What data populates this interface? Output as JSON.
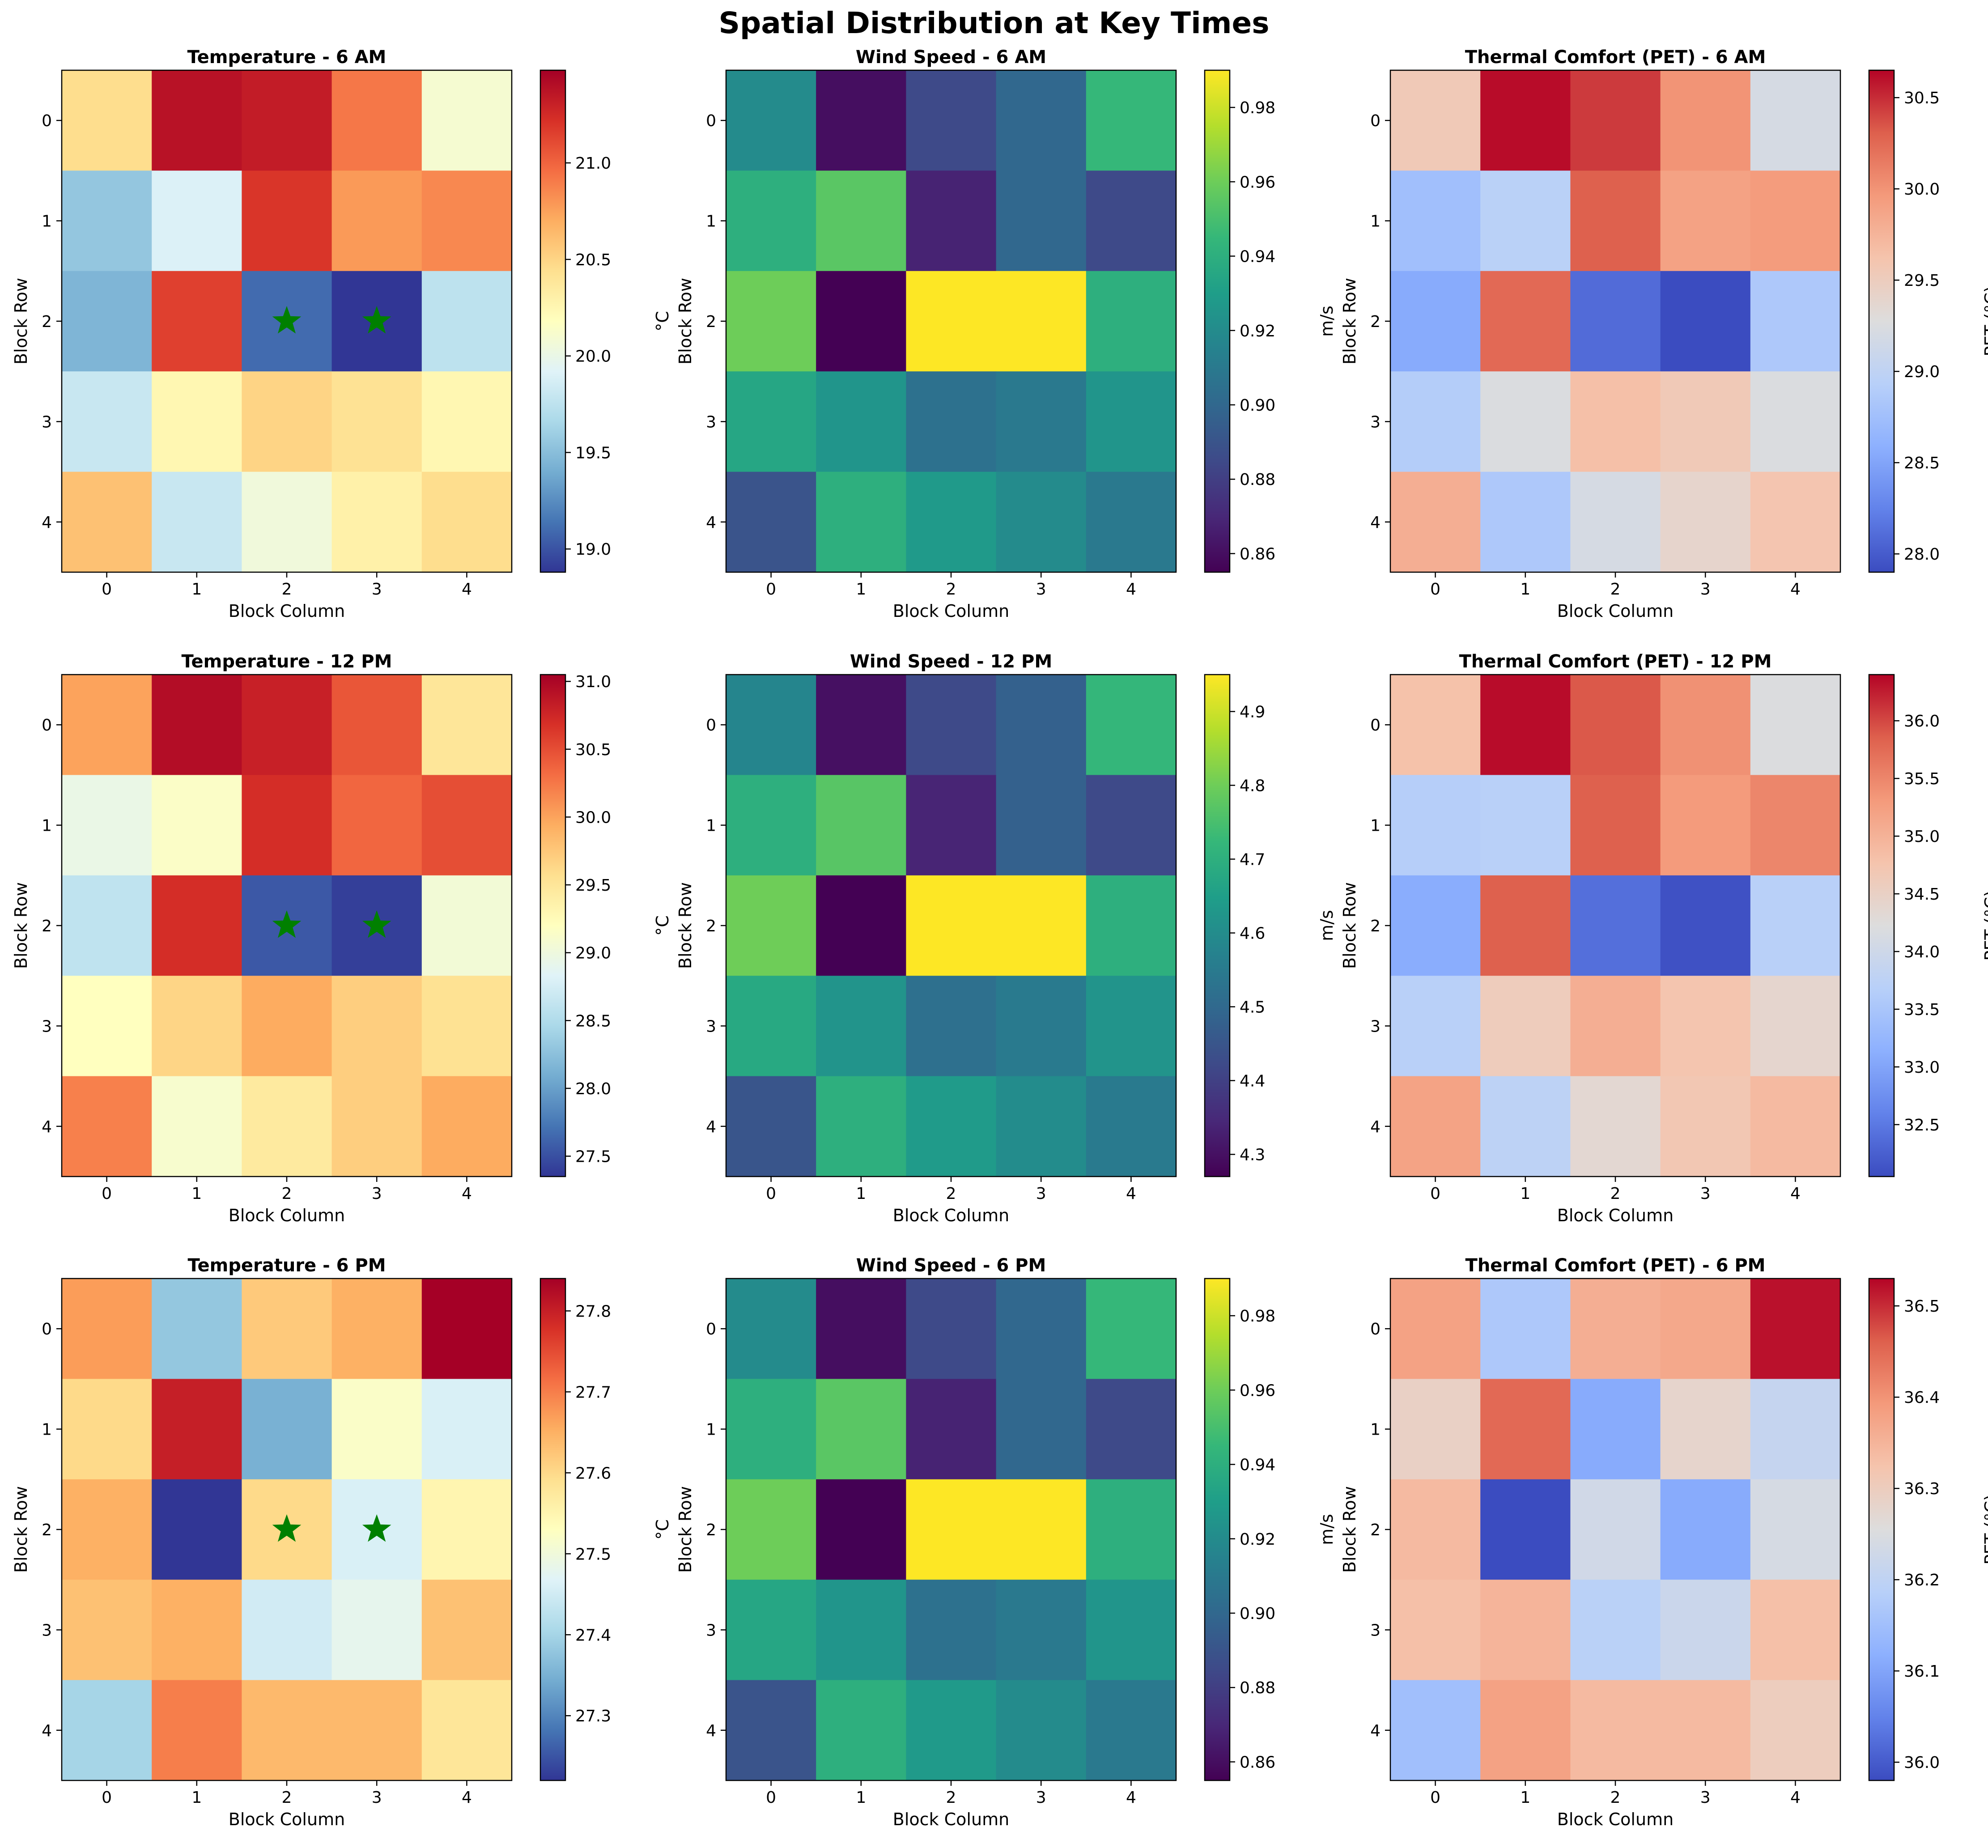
{
  "figure": {
    "suptitle": "Spatial Distribution at Key Times"
  },
  "chart_data": [
    {
      "type": "heatmap",
      "title": "Temperature - 6 AM",
      "xlabel": "Block Column",
      "ylabel": "Block Row",
      "cbar_label": "°C",
      "colormap": "RdYlBu_r",
      "vmin": 18.88,
      "vmax": 21.48,
      "cbar_ticks": [
        19.0,
        19.5,
        20.0,
        20.5,
        21.0
      ],
      "cbar_tick_labels": [
        "19.0",
        "19.5",
        "20.0",
        "20.5",
        "21.0"
      ],
      "x_ticks": [
        "0",
        "1",
        "2",
        "3",
        "4"
      ],
      "y_ticks": [
        "0",
        "1",
        "2",
        "3",
        "4"
      ],
      "values": [
        [
          20.45,
          21.38,
          21.33,
          20.92,
          20.1
        ],
        [
          19.55,
          19.9,
          21.2,
          20.78,
          20.85
        ],
        [
          19.45,
          21.15,
          19.1,
          18.88,
          19.75
        ],
        [
          19.8,
          20.25,
          20.5,
          20.42,
          20.25
        ],
        [
          20.6,
          19.8,
          20.05,
          20.3,
          20.45
        ]
      ],
      "markers": [
        {
          "row": 2,
          "col": 2
        },
        {
          "row": 2,
          "col": 3
        }
      ],
      "marker_color": "#008000"
    },
    {
      "type": "heatmap",
      "title": "Wind Speed - 6 AM",
      "xlabel": "Block Column",
      "ylabel": "Block Row",
      "cbar_label": "m/s",
      "colormap": "viridis",
      "vmin": 0.855,
      "vmax": 0.99,
      "cbar_ticks": [
        0.86,
        0.88,
        0.9,
        0.92,
        0.94,
        0.96,
        0.98
      ],
      "cbar_tick_labels": [
        "0.86",
        "0.88",
        "0.90",
        "0.92",
        "0.94",
        "0.96",
        "0.98"
      ],
      "x_ticks": [
        "0",
        "1",
        "2",
        "3",
        "4"
      ],
      "y_ticks": [
        "0",
        "1",
        "2",
        "3",
        "4"
      ],
      "values": [
        [
          0.92,
          0.86,
          0.885,
          0.9,
          0.945
        ],
        [
          0.94,
          0.955,
          0.868,
          0.9,
          0.885
        ],
        [
          0.96,
          0.855,
          0.99,
          0.99,
          0.94
        ],
        [
          0.935,
          0.925,
          0.905,
          0.91,
          0.925
        ],
        [
          0.89,
          0.94,
          0.928,
          0.92,
          0.91
        ]
      ]
    },
    {
      "type": "heatmap",
      "title": "Thermal Comfort (PET) - 6 AM",
      "xlabel": "Block Column",
      "ylabel": "Block Row",
      "cbar_label": "PET (°C)",
      "colormap": "coolwarm",
      "vmin": 27.9,
      "vmax": 30.65,
      "cbar_ticks": [
        28.0,
        28.5,
        29.0,
        29.5,
        30.0,
        30.5
      ],
      "cbar_tick_labels": [
        "28.0",
        "28.5",
        "29.0",
        "29.5",
        "30.0",
        "30.5"
      ],
      "x_ticks": [
        "0",
        "1",
        "2",
        "3",
        "4"
      ],
      "y_ticks": [
        "0",
        "1",
        "2",
        "3",
        "4"
      ],
      "values": [
        [
          29.55,
          30.62,
          30.45,
          30.0,
          29.2
        ],
        [
          28.75,
          28.95,
          30.3,
          29.9,
          29.95
        ],
        [
          28.55,
          30.25,
          28.1,
          27.9,
          28.85
        ],
        [
          28.9,
          29.25,
          29.65,
          29.55,
          29.25
        ],
        [
          29.8,
          28.85,
          29.2,
          29.4,
          29.6
        ]
      ]
    },
    {
      "type": "heatmap",
      "title": "Temperature - 12 PM",
      "xlabel": "Block Column",
      "ylabel": "Block Row",
      "cbar_label": "°C",
      "colormap": "RdYlBu_r",
      "vmin": 27.35,
      "vmax": 31.05,
      "cbar_ticks": [
        27.5,
        28.0,
        28.5,
        29.0,
        29.5,
        30.0,
        30.5,
        31.0
      ],
      "cbar_tick_labels": [
        "27.5",
        "28.0",
        "28.5",
        "29.0",
        "29.5",
        "30.0",
        "30.5",
        "31.0"
      ],
      "x_ticks": [
        "0",
        "1",
        "2",
        "3",
        "4"
      ],
      "y_ticks": [
        "0",
        "1",
        "2",
        "3",
        "4"
      ],
      "values": [
        [
          30.0,
          30.95,
          30.8,
          30.45,
          29.5
        ],
        [
          28.95,
          29.15,
          30.7,
          30.35,
          30.5
        ],
        [
          28.6,
          30.7,
          27.55,
          27.4,
          29.05
        ],
        [
          29.2,
          29.65,
          29.95,
          29.7,
          29.55
        ],
        [
          30.2,
          29.1,
          29.45,
          29.7,
          29.95
        ]
      ],
      "markers": [
        {
          "row": 2,
          "col": 2
        },
        {
          "row": 2,
          "col": 3
        }
      ],
      "marker_color": "#008000"
    },
    {
      "type": "heatmap",
      "title": "Wind Speed - 12 PM",
      "xlabel": "Block Column",
      "ylabel": "Block Row",
      "cbar_label": "m/s",
      "colormap": "viridis",
      "vmin": 4.27,
      "vmax": 4.95,
      "cbar_ticks": [
        4.3,
        4.4,
        4.5,
        4.6,
        4.7,
        4.8,
        4.9
      ],
      "cbar_tick_labels": [
        "4.3",
        "4.4",
        "4.5",
        "4.6",
        "4.7",
        "4.8",
        "4.9"
      ],
      "x_ticks": [
        "0",
        "1",
        "2",
        "3",
        "4"
      ],
      "y_ticks": [
        "0",
        "1",
        "2",
        "3",
        "4"
      ],
      "values": [
        [
          4.58,
          4.3,
          4.42,
          4.48,
          4.72
        ],
        [
          4.7,
          4.77,
          4.34,
          4.48,
          4.42
        ],
        [
          4.8,
          4.27,
          4.95,
          4.95,
          4.7
        ],
        [
          4.68,
          4.62,
          4.52,
          4.55,
          4.62
        ],
        [
          4.45,
          4.7,
          4.64,
          4.6,
          4.55
        ]
      ]
    },
    {
      "type": "heatmap",
      "title": "Thermal Comfort (PET) - 12 PM",
      "xlabel": "Block Column",
      "ylabel": "Block Row",
      "cbar_label": "PET (°C)",
      "colormap": "coolwarm",
      "vmin": 32.05,
      "vmax": 36.4,
      "cbar_ticks": [
        32.5,
        33.0,
        33.5,
        34.0,
        34.5,
        35.0,
        35.5,
        36.0
      ],
      "cbar_tick_labels": [
        "32.5",
        "33.0",
        "33.5",
        "34.0",
        "34.5",
        "35.0",
        "35.5",
        "36.0"
      ],
      "x_ticks": [
        "0",
        "1",
        "2",
        "3",
        "4"
      ],
      "y_ticks": [
        "0",
        "1",
        "2",
        "3",
        "4"
      ],
      "values": [
        [
          34.8,
          36.35,
          35.9,
          35.4,
          34.2
        ],
        [
          33.65,
          33.7,
          35.85,
          35.3,
          35.5
        ],
        [
          33.1,
          35.85,
          32.4,
          32.1,
          33.7
        ],
        [
          33.7,
          34.6,
          35.05,
          34.75,
          34.4
        ],
        [
          35.2,
          33.75,
          34.35,
          34.7,
          34.9
        ]
      ]
    },
    {
      "type": "heatmap",
      "title": "Temperature - 6 PM",
      "xlabel": "Block Column",
      "ylabel": "Block Row",
      "cbar_label": "°C",
      "colormap": "RdYlBu_r",
      "vmin": 27.22,
      "vmax": 27.84,
      "cbar_ticks": [
        27.3,
        27.4,
        27.5,
        27.6,
        27.7,
        27.8
      ],
      "cbar_tick_labels": [
        "27.3",
        "27.4",
        "27.5",
        "27.6",
        "27.7",
        "27.8"
      ],
      "x_ticks": [
        "0",
        "1",
        "2",
        "3",
        "4"
      ],
      "y_ticks": [
        "0",
        "1",
        "2",
        "3",
        "4"
      ],
      "values": [
        [
          27.67,
          27.38,
          27.62,
          27.65,
          27.84
        ],
        [
          27.6,
          27.8,
          27.35,
          27.52,
          27.46
        ],
        [
          27.65,
          27.22,
          27.6,
          27.46,
          27.55
        ],
        [
          27.63,
          27.65,
          27.45,
          27.48,
          27.63
        ],
        [
          27.4,
          27.7,
          27.64,
          27.64,
          27.58
        ]
      ],
      "markers": [
        {
          "row": 2,
          "col": 2
        },
        {
          "row": 2,
          "col": 3
        }
      ],
      "marker_color": "#008000"
    },
    {
      "type": "heatmap",
      "title": "Wind Speed - 6 PM",
      "xlabel": "Block Column",
      "ylabel": "Block Row",
      "cbar_label": "m/s",
      "colormap": "viridis",
      "vmin": 0.855,
      "vmax": 0.99,
      "cbar_ticks": [
        0.86,
        0.88,
        0.9,
        0.92,
        0.94,
        0.96,
        0.98
      ],
      "cbar_tick_labels": [
        "0.86",
        "0.88",
        "0.90",
        "0.92",
        "0.94",
        "0.96",
        "0.98"
      ],
      "x_ticks": [
        "0",
        "1",
        "2",
        "3",
        "4"
      ],
      "y_ticks": [
        "0",
        "1",
        "2",
        "3",
        "4"
      ],
      "values": [
        [
          0.92,
          0.86,
          0.885,
          0.9,
          0.945
        ],
        [
          0.94,
          0.955,
          0.868,
          0.9,
          0.885
        ],
        [
          0.96,
          0.855,
          0.99,
          0.99,
          0.94
        ],
        [
          0.935,
          0.925,
          0.905,
          0.91,
          0.925
        ],
        [
          0.89,
          0.94,
          0.928,
          0.92,
          0.91
        ]
      ]
    },
    {
      "type": "heatmap",
      "title": "Thermal Comfort (PET) - 6 PM",
      "xlabel": "Block Column",
      "ylabel": "Block Row",
      "cbar_label": "PET (°C)",
      "colormap": "coolwarm",
      "vmin": 35.98,
      "vmax": 36.53,
      "cbar_ticks": [
        36.0,
        36.1,
        36.2,
        36.3,
        36.4,
        36.5
      ],
      "cbar_tick_labels": [
        "36.0",
        "36.1",
        "36.2",
        "36.3",
        "36.4",
        "36.5"
      ],
      "x_ticks": [
        "0",
        "1",
        "2",
        "3",
        "4"
      ],
      "y_ticks": [
        "0",
        "1",
        "2",
        "3",
        "4"
      ],
      "values": [
        [
          36.38,
          36.17,
          36.36,
          36.37,
          36.52
        ],
        [
          36.29,
          36.45,
          36.11,
          36.28,
          36.21
        ],
        [
          36.34,
          35.98,
          36.23,
          36.11,
          36.24
        ],
        [
          36.33,
          36.35,
          36.19,
          36.22,
          36.33
        ],
        [
          36.15,
          36.38,
          36.34,
          36.34,
          36.3
        ]
      ]
    }
  ]
}
